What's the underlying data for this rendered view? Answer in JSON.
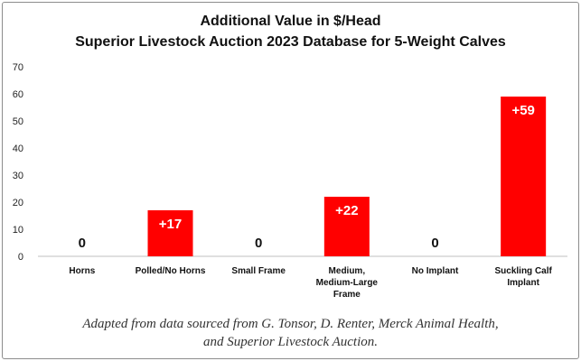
{
  "chart_data": {
    "type": "bar",
    "title": "Additional Value in $/Head",
    "subtitle": "Superior Livestock Auction 2023 Database for 5-Weight Calves",
    "categories": [
      "Horns",
      "Polled/No Horns",
      "Small Frame",
      "Medium,|Medium-Large|Frame",
      "No Implant",
      "Suckling Calf|Implant"
    ],
    "values": [
      0,
      17,
      0,
      22,
      0,
      59
    ],
    "data_labels": [
      "0",
      "+17",
      "0",
      "+22",
      "0",
      "+59"
    ],
    "ylim": [
      0,
      70
    ],
    "yticks": [
      "0",
      "10",
      "20",
      "30",
      "40",
      "50",
      "60",
      "70"
    ],
    "grid": false,
    "bar_color": "#ff0000",
    "xlabel": "",
    "ylabel": ""
  },
  "caption": {
    "line1": "Adapted from data sourced from G. Tonsor, D. Renter, Merck Animal Health,",
    "line2": "and Superior Livestock Auction."
  }
}
